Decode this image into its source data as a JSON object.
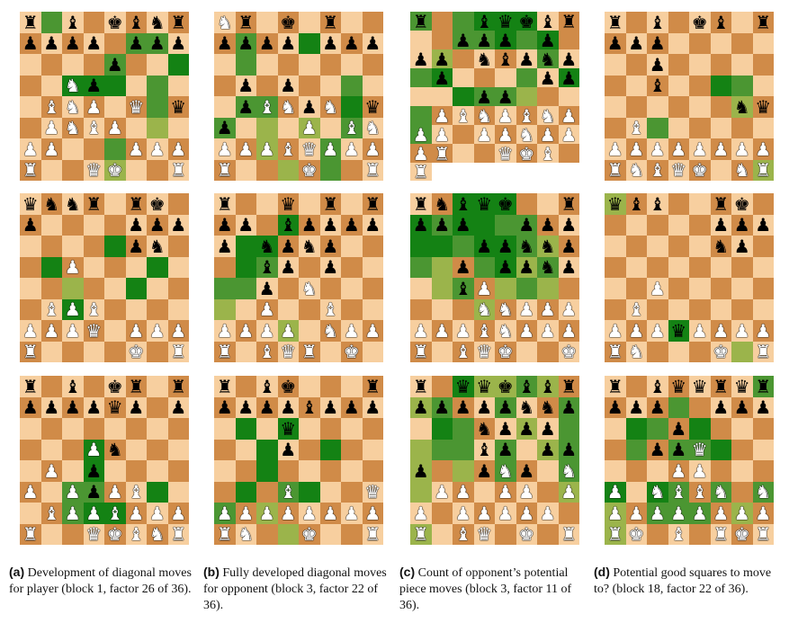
{
  "colors": {
    "light_square": "#f7cf9f",
    "dark_square": "#d08b48",
    "highlight_strong": "#148214",
    "highlight_medium": "#4b9632",
    "highlight_weak": "#9bb44b"
  },
  "icons": {
    "K": "white-king-icon",
    "Q": "white-queen-icon",
    "R": "white-rook-icon",
    "B": "white-bishop-icon",
    "N": "white-knight-icon",
    "P": "white-pawn-icon",
    "k": "black-king-icon",
    "q": "black-queen-icon",
    "r": "black-rook-icon",
    "b": "black-bishop-icon",
    "n": "black-knight-icon",
    "p": "black-pawn-icon"
  },
  "boards": [
    {
      "fen": "r1b1kbnr/pppp1ppp/4p3/2Np4/1BNP1Q1q/1PNBP3/PP3PPP/R2QK2R",
      "heat": {
        "b8": 0.6,
        "f7": 0.6,
        "g7": 0.6,
        "h6": 1,
        "e6": 0.6,
        "c5": 1,
        "d5": 1,
        "g5": 0.6,
        "e5": 1,
        "g4": 0.6,
        "g3": 0.3,
        "e2": 0.6,
        "e1": 0.3
      }
    },
    {
      "fen": "Nr1k1r2/pppp1ppp/8/1p1p4/1pBNpN1q/p3P1BN/PPPBQPPP/R3K2R",
      "heat": {
        "b7": 0.6,
        "e7": 1,
        "b6": 0.6,
        "c4": 0.6,
        "g5": 0.6,
        "b4": 0.6,
        "g4": 1,
        "a3": 0.6,
        "c3": 0.3,
        "e3": 0.3,
        "g3": 0.6,
        "c2": 0.3,
        "f2": 0.6,
        "d1": 0.3,
        "f1": 0.6
      }
    },
    {
      "fen": "r2bqkbr1/1ppp1p1p/p1nbpnp1/p4pp1/2pp4/PBNPBNPP/P1PPNPPP/R2QKB1R",
      "heat": {
        "a8": 0.6,
        "c8": 0.6,
        "d8": 1,
        "e8": 1,
        "f8": 1,
        "b7": 0.6,
        "c7": 0.6,
        "d7": 1,
        "e7": 0.6,
        "f7": 1,
        "a6": 0.3,
        "f6": 0.6,
        "h6": 0.6,
        "a5": 1,
        "e5": 0.6,
        "g5": 1,
        "b4": 1,
        "c4": 0.6,
        "d4": 0.6,
        "e4": 0.3,
        "h4": 0.6,
        "h3": 0.6
      }
    },
    {
      "fen": "r1b1kb1r/ppp5/2p5/2b5/6nq/1B6/PPPPPPPP/RNBQK1NR",
      "heat": {
        "f5": 1,
        "g5": 0.6,
        "g4": 0.3,
        "c3": 0.6,
        "h1": 0.3
      }
    },
    {
      "fen": "qnnr1rk1/p4ppp/5pn1/2P5/8/1BPB4/PPPQ1PPP/R4K1R",
      "heat": {
        "b5": 1,
        "e6": 1,
        "g5": 1,
        "c4": 0.3,
        "f4": 1,
        "c3": 1
      }
    },
    {
      "fen": "r2q1r1r/pp1bpppp/p1npnp2/2bp1p2/2p1N3/2P2B2/PPPP1NPP/R1BQR1K1",
      "heat": {
        "d7": 1,
        "b6": 1,
        "c6": 1,
        "b5": 1,
        "c5": 0.6,
        "a4": 0.6,
        "b4": 0.6,
        "a3": 0.3,
        "d2": 0.3
      }
    },
    {
      "fen": "rnbqk2r/ppp2ppp/3ppnnp/2p1ppnp/2bP4/3NNPPP/PPPBNPPP/R1BQK2K",
      "heat": {
        "c8": 1,
        "d8": 1,
        "e8": 1,
        "a7": 1,
        "b7": 0.6,
        "c7": 1,
        "d7": 1,
        "e7": 0.6,
        "f7": 0.6,
        "a6": 1,
        "b6": 1,
        "c6": 0.6,
        "d6": 1,
        "e6": 1,
        "f6": 0.6,
        "g6": 0.3,
        "a5": 0.6,
        "b5": 0.3,
        "d5": 0.6,
        "e5": 1,
        "f5": 0.3,
        "g5": 0.6,
        "b4": 0.3,
        "c4": 0.6,
        "e4": 0.3,
        "f4": 0.6,
        "g4": 0.3,
        "d3": 0.3
      }
    },
    {
      "fen": "qbb2rk1/5ppp/5np1/8/2P5/1B6/PPPqPPPP/RN3K1R",
      "heat": {
        "a8": 0.3,
        "d2": 1,
        "g1": 0.3
      }
    },
    {
      "fen": "r1b1kr1r/ppppqp1p/8/3Pn3/1P1p4/P1PpPB2/1BPPBPPP/R2QKBNR",
      "heat": {
        "d5": 1,
        "d4": 1,
        "c3": 0.6,
        "d3": 0.6,
        "g3": 1,
        "e2": 1,
        "c2": 0.6,
        "d2": 1
      }
    },
    {
      "fen": "r1bk3r/ppppbppp/3q4/3p4/8/3B3Q/PPPPPPPP/RN2K2R",
      "heat": {
        "b6": 1,
        "d6": 1,
        "c5": 1,
        "f5": 1,
        "c4": 1,
        "b3": 1,
        "d3": 0.6,
        "e3": 1,
        "a2": 0.6,
        "c2": 0.3,
        "d1": 0.3
      }
    },
    {
      "fen": "r1qqkbbr/pppppnnp/3nppp1/3bp1pp/p2pNp1N/1PP1PP1P/P1PPPPP1/R1BQ1K1R",
      "heat": {
        "c8": 1,
        "d8": 0.3,
        "e8": 0.3,
        "f8": 0.6,
        "g8": 0.3,
        "a7": 0.3,
        "b7": 0.6,
        "e7": 0.6,
        "h7": 0.6,
        "b6": 1,
        "c6": 0.6,
        "f6": 0.3,
        "h6": 0.6,
        "a5": 0.3,
        "b5": 0.6,
        "c5": 0.6,
        "e5": 0.6,
        "g5": 0.3,
        "h5": 0.6,
        "a4": 0.3,
        "c4": 0.3,
        "e4": 0.6,
        "h4": 0.6,
        "a3": 0.3,
        "h3": 0.3,
        "a1": 0.3
      }
    },
    {
      "fen": "r1bqqrqr/ppp2ppp/3p4/2ppQ3/3PP3/P1NBBN1N/PPPPPPPP/RK1B1RKR",
      "heat": {
        "h8": 0.6,
        "d7": 0.6,
        "b6": 1,
        "c6": 0.6,
        "e6": 1,
        "b5": 0.6,
        "d5": 0.6,
        "e5": 0.6,
        "f5": 1,
        "a3": 1,
        "c3": 1,
        "d3": 0.6,
        "f3": 0.6,
        "h3": 0.6,
        "a2": 0.3,
        "c2": 0.6,
        "d2": 0.6,
        "e2": 0.6,
        "g2": 0.3,
        "a1": 0.3
      }
    }
  ],
  "captions": [
    {
      "label": "(a)",
      "text": " Development of diagonal moves for player (block 1, factor 26 of 36)."
    },
    {
      "label": "(b)",
      "text": " Fully developed diagonal moves for opponent (block 3, factor 22 of 36)."
    },
    {
      "label": "(c)",
      "text": " Count of opponent’s potential piece moves (block 3, factor 11 of 36)."
    },
    {
      "label": "(d)",
      "text": " Potential good squares to move to? (block 18, factor 22 of 36)."
    }
  ]
}
